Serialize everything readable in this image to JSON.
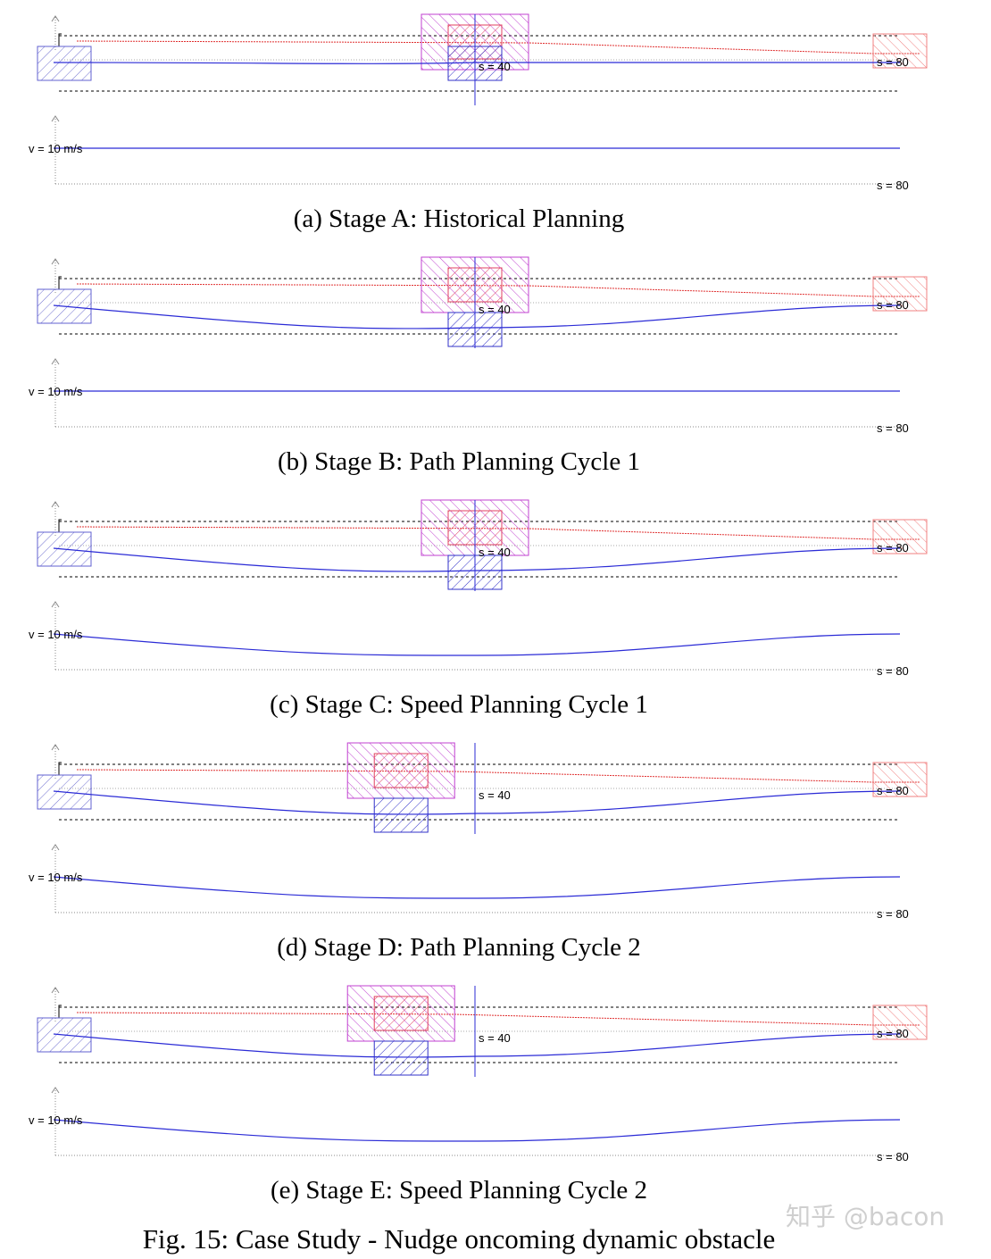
{
  "figure": {
    "caption": "Fig. 15: Case Study - Nudge oncoming dynamic obstacle",
    "watermark": "知乎 @bacon",
    "colors": {
      "path": "#2b2bd6",
      "reference_line": "#e03030",
      "obstacle_red": "#e04060",
      "obstacle_magenta": "#c040d0",
      "obstacle_blue": "#3030c8",
      "ego_box": "#6060d0",
      "grid": "#000000"
    }
  },
  "panels": [
    {
      "id": "a",
      "caption": "(a) Stage A: Historical Planning",
      "s_label": "s = 40",
      "s_end_label": "s = 80",
      "v_label": "v = 10 m/s",
      "v_end_label": "s = 80",
      "obstacle_s": 40,
      "path_dip": 0,
      "speed_dip": 0
    },
    {
      "id": "b",
      "caption": "(b) Stage B: Path Planning Cycle 1",
      "s_label": "s = 40",
      "s_end_label": "s = 80",
      "v_label": "v = 10 m/s",
      "v_end_label": "s = 80",
      "obstacle_s": 40,
      "path_dip": 1,
      "speed_dip": 0
    },
    {
      "id": "c",
      "caption": "(c) Stage C: Speed Planning Cycle 1",
      "s_label": "s = 40",
      "s_end_label": "s = 80",
      "v_label": "v = 10 m/s",
      "v_end_label": "s = 80",
      "obstacle_s": 40,
      "path_dip": 1,
      "speed_dip": 1
    },
    {
      "id": "d",
      "caption": "(d) Stage D: Path Planning Cycle 2",
      "s_label": "s = 40",
      "s_end_label": "s = 80",
      "v_label": "v = 10 m/s",
      "v_end_label": "s = 80",
      "obstacle_s": 33,
      "path_dip": 1,
      "speed_dip": 1
    },
    {
      "id": "e",
      "caption": "(e) Stage E: Speed Planning Cycle 2",
      "s_label": "s = 40",
      "s_end_label": "s = 80",
      "v_label": "v = 10 m/s",
      "v_end_label": "s = 80",
      "obstacle_s": 33,
      "path_dip": 1,
      "speed_dip": 1
    }
  ]
}
